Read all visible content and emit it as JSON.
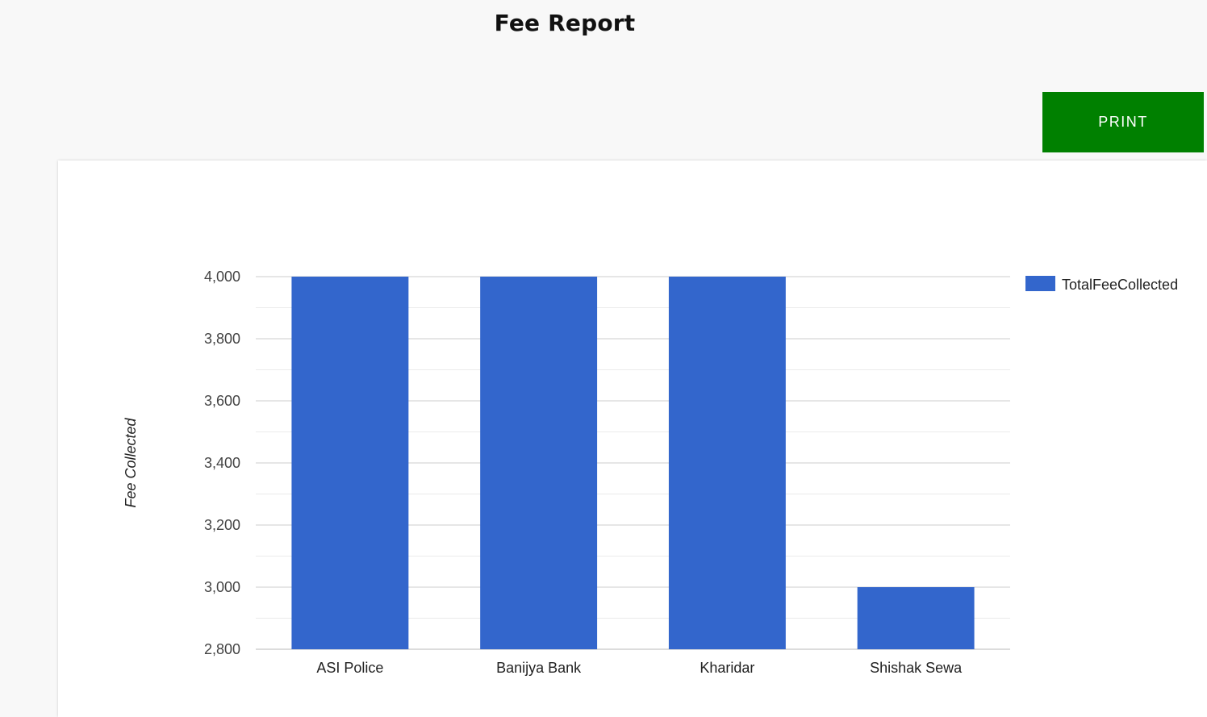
{
  "header": {
    "title": "Fee Report",
    "print_label": "PRINT",
    "print_color": "#008000"
  },
  "chart_data": {
    "type": "bar",
    "categories": [
      "ASI Police",
      "Banijya Bank",
      "Kharidar",
      "Shishak Sewa"
    ],
    "series": [
      {
        "name": "TotalFeeCollected",
        "values": [
          4000,
          4000,
          4000,
          3000
        ],
        "color": "#3366cc"
      }
    ],
    "title": "",
    "ylabel": "Fee Collected",
    "xlabel": "",
    "ylim": [
      2800,
      4000
    ],
    "yticks": [
      4000,
      3800,
      3600,
      3400,
      3200,
      3000,
      2800
    ],
    "ytick_labels": [
      "4,000",
      "3,800",
      "3,600",
      "3,400",
      "3,200",
      "3,000",
      "2,800"
    ],
    "grid": true,
    "legend_position": "right"
  }
}
